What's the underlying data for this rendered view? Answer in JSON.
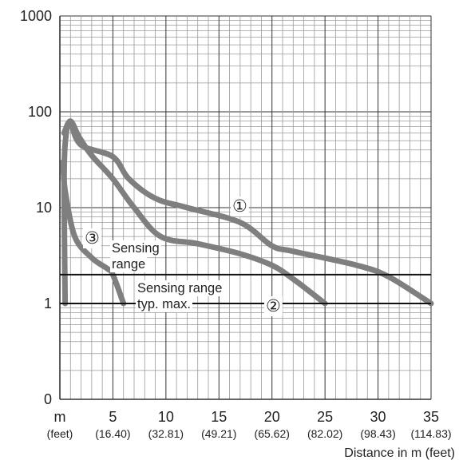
{
  "chart_data": {
    "type": "line",
    "xlabel": "Distance in m (feet)",
    "ylabel": "",
    "y_scale": "log",
    "ylim_decades": [
      0.1,
      1000
    ],
    "xlim": [
      0,
      35
    ],
    "x_ticks": [
      {
        "value": 0,
        "label": "m",
        "sub": "(feet)"
      },
      {
        "value": 5,
        "label": "5",
        "sub": "(16.40)"
      },
      {
        "value": 10,
        "label": "10",
        "sub": "(32.81)"
      },
      {
        "value": 15,
        "label": "15",
        "sub": "(49.21)"
      },
      {
        "value": 20,
        "label": "20",
        "sub": "(65.62)"
      },
      {
        "value": 25,
        "label": "25",
        "sub": "(82.02)"
      },
      {
        "value": 30,
        "label": "30",
        "sub": "(98.43)"
      },
      {
        "value": 35,
        "label": "35",
        "sub": "(114.83)"
      }
    ],
    "y_ticks": [
      {
        "value": 0.1,
        "label": "0"
      },
      {
        "value": 1,
        "label": "1"
      },
      {
        "value": 10,
        "label": "10"
      },
      {
        "value": 100,
        "label": "100"
      },
      {
        "value": 1000,
        "label": "1000"
      }
    ],
    "grid": true,
    "series": [
      {
        "name": "①",
        "points": [
          [
            0.5,
            1
          ],
          [
            0.4,
            20
          ],
          [
            0.6,
            60
          ],
          [
            1.0,
            75
          ],
          [
            2,
            45
          ],
          [
            5,
            34
          ],
          [
            6.5,
            20
          ],
          [
            9,
            12.5
          ],
          [
            12,
            10
          ],
          [
            17,
            7
          ],
          [
            20,
            4
          ],
          [
            22,
            3.5
          ],
          [
            28,
            2.5
          ],
          [
            31,
            1.9
          ],
          [
            35,
            1.0
          ]
        ]
      },
      {
        "name": "②",
        "points": [
          [
            0.4,
            60
          ],
          [
            1.0,
            80
          ],
          [
            1.8,
            55
          ],
          [
            3,
            35
          ],
          [
            5,
            20
          ],
          [
            7,
            10
          ],
          [
            9.5,
            5
          ],
          [
            13,
            4.2
          ],
          [
            17,
            3.3
          ],
          [
            20,
            2.5
          ],
          [
            22,
            1.8
          ],
          [
            25,
            1.0
          ]
        ]
      },
      {
        "name": "③",
        "points": [
          [
            0.3,
            30
          ],
          [
            0.5,
            15
          ],
          [
            1.4,
            5
          ],
          [
            3,
            3
          ],
          [
            4.5,
            2.3
          ],
          [
            5,
            2
          ],
          [
            6,
            1.0
          ]
        ]
      }
    ],
    "reference_lines": [
      {
        "y": 2,
        "label": "Sensing range"
      },
      {
        "y": 1,
        "label": "Sensing range typ. max."
      }
    ],
    "annotations": [
      {
        "text": "Sensing",
        "line": "range"
      },
      {
        "text": "Sensing range",
        "line": "typ. max."
      }
    ]
  },
  "labels": {
    "ann_range_1": "Sensing",
    "ann_range_2": "range",
    "ann_max_1": "Sensing range",
    "ann_max_2": "typ. max.",
    "series_1_marker": "①",
    "series_2_marker": "②",
    "series_3_marker": "③"
  },
  "colors": {
    "curve": "#7f7f7f",
    "grid_major": "#333333",
    "grid_minor": "#9a9a9a",
    "text": "#222222"
  }
}
